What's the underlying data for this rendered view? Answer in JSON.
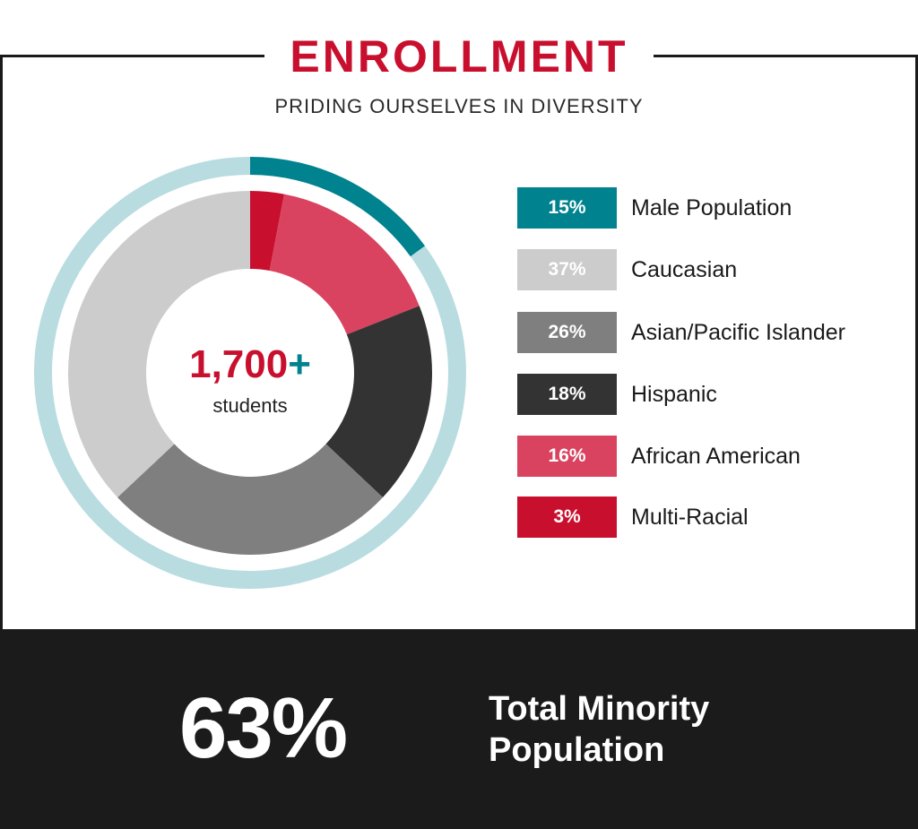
{
  "header": {
    "title": "ENROLLMENT",
    "subtitle": "PRIDING OURSELVES IN DIVERSITY"
  },
  "center": {
    "value": "1,700",
    "plus": "+",
    "label": "students"
  },
  "colors": {
    "accent": "#c8102e",
    "teal": "#00838f",
    "ring_track": "#b8dce0",
    "footer_bg": "#1b1b1b"
  },
  "chart_data": {
    "type": "pie",
    "title": "ENROLLMENT",
    "subtitle": "PRIDING OURSELVES IN DIVERSITY",
    "outer_ring": {
      "name": "Male Population",
      "percent": 15,
      "color": "#00838f",
      "track_color": "#b8dce0"
    },
    "slices": [
      {
        "label": "Multi-Racial",
        "percent": 3,
        "color": "#c8102e"
      },
      {
        "label": "African American",
        "percent": 16,
        "color": "#d9435f"
      },
      {
        "label": "Hispanic",
        "percent": 18,
        "color": "#333333"
      },
      {
        "label": "Asian/Pacific Islander",
        "percent": 26,
        "color": "#7f7f7f"
      },
      {
        "label": "Caucasian",
        "percent": 37,
        "color": "#cccccc"
      }
    ]
  },
  "legend": [
    {
      "value": "15%",
      "label": "Male Population",
      "color": "#00838f"
    },
    {
      "value": "37%",
      "label": "Caucasian",
      "color": "#cccccc"
    },
    {
      "value": "26%",
      "label": "Asian/Pacific Islander",
      "color": "#7f7f7f"
    },
    {
      "value": "18%",
      "label": "Hispanic",
      "color": "#333333"
    },
    {
      "value": "16%",
      "label": "African American",
      "color": "#d9435f"
    },
    {
      "value": "3%",
      "label": "Multi-Racial",
      "color": "#c8102e"
    }
  ],
  "footer": {
    "value": "63%",
    "label_line1": "Total Minority",
    "label_line2": "Population"
  }
}
